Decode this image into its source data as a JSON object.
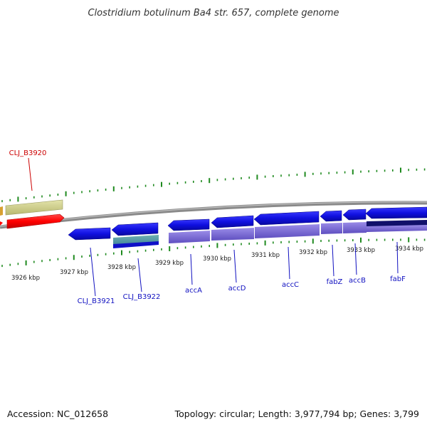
{
  "title": "Clostridium botulinum Ba4 str. 657, complete genome",
  "footer": {
    "accession": "Accession: NC_012658",
    "summary": "Topology: circular; Length: 3,977,794 bp; Genes: 3,799"
  },
  "colors": {
    "backbone": "#8a8a8a",
    "tick": "#1f8a1f",
    "forward_gene": "#d8d89a",
    "red_gene": "#ff0000",
    "reverse_gene": "#1010e0",
    "cds_purple": "#7f6fd6",
    "label_blue": "#1010c0",
    "label_red": "#cc0000"
  },
  "tick_labels": [
    "3926 kbp",
    "3927 kbp",
    "3928 kbp",
    "3929 kbp",
    "3930 kbp",
    "3931 kbp",
    "3932 kbp",
    "3933 kbp",
    "3934 kbp"
  ],
  "gene_labels": [
    {
      "text": "CLJ_B3920",
      "color": "red"
    },
    {
      "text": "CLJ_B3921",
      "color": "blue"
    },
    {
      "text": "CLJ_B3922",
      "color": "blue"
    },
    {
      "text": "accA",
      "color": "blue"
    },
    {
      "text": "accD",
      "color": "blue"
    },
    {
      "text": "accC",
      "color": "blue"
    },
    {
      "text": "fabZ",
      "color": "blue"
    },
    {
      "text": "accB",
      "color": "blue"
    },
    {
      "text": "fabF",
      "color": "blue"
    }
  ]
}
